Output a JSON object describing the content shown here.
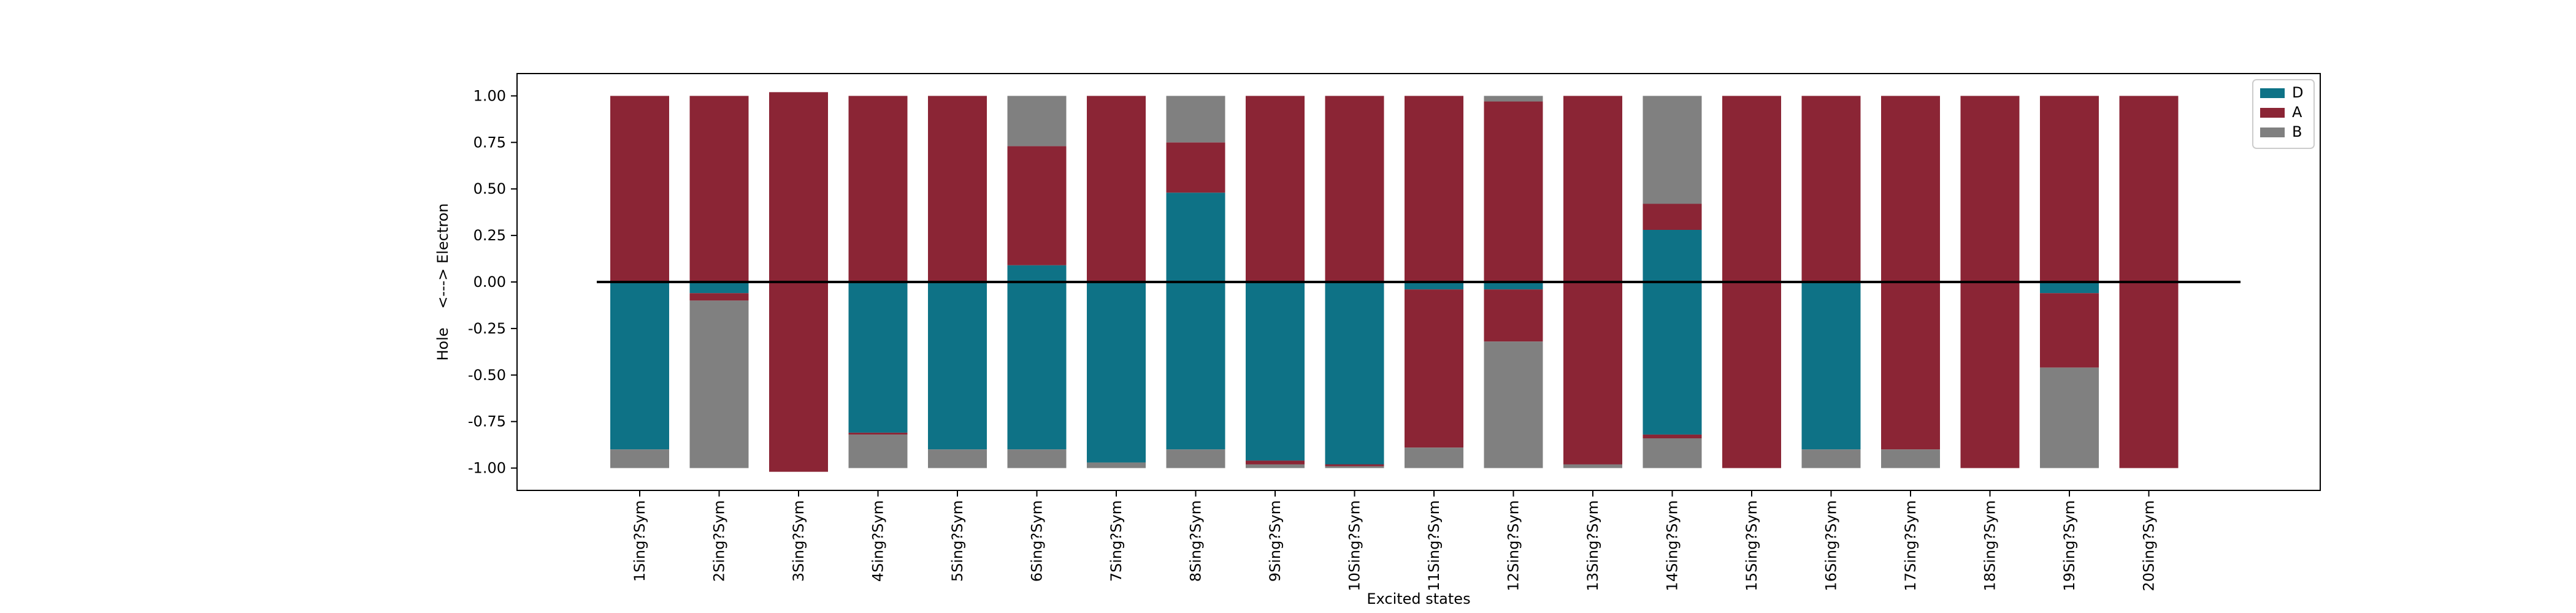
{
  "chart_data": {
    "type": "bar",
    "stacked": true,
    "xlabel": "Excited states",
    "ylabel": "Hole    <---> Electron",
    "ylim": [
      -1.12,
      1.12
    ],
    "yticks": [
      "1.00",
      "0.75",
      "0.50",
      "0.25",
      "0.00",
      "-0.25",
      "-0.50",
      "-0.75",
      "-1.00"
    ],
    "ytick_values": [
      1.0,
      0.75,
      0.5,
      0.25,
      0.0,
      -0.25,
      -0.5,
      -0.75,
      -1.0
    ],
    "categories": [
      "1Sing?Sym",
      "2Sing?Sym",
      "3Sing?Sym",
      "4Sing?Sym",
      "5Sing?Sym",
      "6Sing?Sym",
      "7Sing?Sym",
      "8Sing?Sym",
      "9Sing?Sym",
      "10Sing?Sym",
      "11Sing?Sym",
      "12Sing?Sym",
      "13Sing?Sym",
      "14Sing?Sym",
      "15Sing?Sym",
      "16Sing?Sym",
      "17Sing?Sym",
      "18Sing?Sym",
      "19Sing?Sym",
      "20Sing?Sym"
    ],
    "colors": {
      "D": "#0e7286",
      "A": "#8b2535",
      "B": "#808080"
    },
    "legend": [
      "D",
      "A",
      "B"
    ],
    "legend_position": "top-right",
    "zero_line": true,
    "electron": {
      "D": [
        0,
        0,
        0,
        0,
        0,
        0.09,
        0,
        0.48,
        0,
        0,
        0,
        0,
        0,
        0.28,
        0,
        0,
        0,
        0,
        0,
        0
      ],
      "A": [
        1.0,
        1.0,
        1.02,
        1.0,
        1.0,
        0.64,
        1.0,
        0.27,
        1.0,
        1.0,
        1.0,
        0.97,
        1.0,
        0.14,
        1.0,
        1.0,
        1.0,
        1.0,
        1.0,
        1.0
      ],
      "B": [
        0,
        0,
        0,
        0,
        0,
        0.27,
        0,
        0.25,
        0,
        0,
        0,
        0.03,
        0,
        0.58,
        0,
        0,
        0,
        0,
        0,
        0
      ]
    },
    "hole": {
      "D": [
        -0.9,
        -0.06,
        0,
        -0.81,
        -0.9,
        -0.9,
        -0.97,
        -0.9,
        -0.96,
        -0.98,
        -0.04,
        -0.04,
        0,
        -0.82,
        0,
        -0.9,
        0,
        0,
        -0.06,
        0
      ],
      "A": [
        0,
        -0.04,
        -1.02,
        -0.01,
        0,
        0,
        0,
        0,
        -0.02,
        -0.01,
        -0.85,
        -0.28,
        -0.98,
        -0.02,
        -1.0,
        0,
        -0.9,
        -1.0,
        -0.4,
        -1.0
      ],
      "B": [
        -0.1,
        -0.9,
        0,
        -0.18,
        -0.1,
        -0.1,
        -0.03,
        -0.1,
        -0.02,
        -0.01,
        -0.11,
        -0.68,
        -0.02,
        -0.16,
        0,
        -0.1,
        -0.1,
        0,
        -0.54,
        0
      ]
    }
  }
}
